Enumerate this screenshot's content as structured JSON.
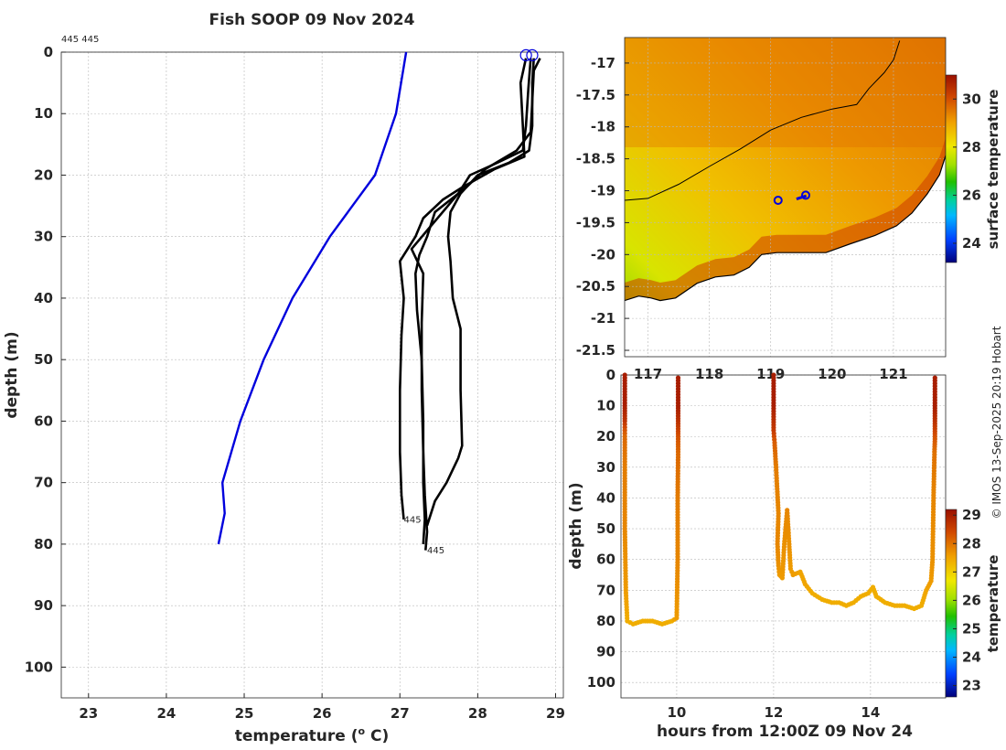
{
  "page": {
    "title": "Fish SOOP 09 Nov 2024",
    "copyright": "© IMOS 13-Sep-2025 20:19 Hobart"
  },
  "chart_data": [
    {
      "name": "profile",
      "type": "line",
      "title": "Fish SOOP 09 Nov 2024",
      "header_label": "445 445",
      "xlabel": "temperature (° C)",
      "xlabel_text": "temperature (",
      "xlabel_sup": "o",
      "xlabel_unit": " C)",
      "ylabel": "depth (m)",
      "xlim": [
        22.65,
        29.1
      ],
      "ylim": [
        105,
        0
      ],
      "xticks": [
        23,
        24,
        25,
        26,
        27,
        28,
        29
      ],
      "yticks": [
        0,
        10,
        20,
        30,
        40,
        50,
        60,
        70,
        80,
        90,
        100
      ],
      "grid": true,
      "series": [
        {
          "name": "climatology",
          "color": "#0000dd",
          "points": [
            [
              27.08,
              0
            ],
            [
              26.95,
              10
            ],
            [
              26.68,
              20
            ],
            [
              26.1,
              30
            ],
            [
              25.62,
              40
            ],
            [
              25.25,
              50
            ],
            [
              24.95,
              60
            ],
            [
              24.72,
              70
            ],
            [
              24.75,
              75
            ],
            [
              24.67,
              80
            ]
          ]
        },
        {
          "name": "profile-a",
          "color": "#000000",
          "points": [
            [
              28.62,
              1
            ],
            [
              28.55,
              5
            ],
            [
              28.58,
              12
            ],
            [
              28.6,
              17
            ],
            [
              28.22,
              19
            ],
            [
              27.8,
              22
            ],
            [
              27.55,
              24
            ],
            [
              27.3,
              27
            ],
            [
              27.2,
              30
            ],
            [
              27.0,
              34
            ],
            [
              27.05,
              40
            ],
            [
              27.02,
              46
            ],
            [
              27.0,
              55
            ],
            [
              27.0,
              65
            ],
            [
              27.02,
              72
            ],
            [
              27.05,
              76
            ]
          ]
        },
        {
          "name": "profile-b",
          "color": "#000000",
          "points": [
            [
              28.68,
              1
            ],
            [
              28.65,
              6
            ],
            [
              28.62,
              12
            ],
            [
              28.58,
              16
            ],
            [
              28.25,
              18
            ],
            [
              27.9,
              20
            ],
            [
              27.75,
              23
            ],
            [
              27.55,
              26
            ],
            [
              27.35,
              29
            ],
            [
              27.15,
              32
            ],
            [
              27.3,
              36
            ],
            [
              27.28,
              44
            ],
            [
              27.28,
              55
            ],
            [
              27.3,
              65
            ],
            [
              27.32,
              72
            ],
            [
              27.35,
              78
            ],
            [
              27.33,
              81
            ]
          ]
        },
        {
          "name": "profile-c",
          "color": "#000000",
          "points": [
            [
              28.72,
              1
            ],
            [
              28.7,
              5
            ],
            [
              28.7,
              12
            ],
            [
              28.66,
              16
            ],
            [
              28.4,
              18
            ],
            [
              28.0,
              20
            ],
            [
              27.78,
              23
            ],
            [
              27.65,
              26
            ],
            [
              27.62,
              30
            ],
            [
              27.65,
              34
            ],
            [
              27.68,
              40
            ],
            [
              27.78,
              45
            ],
            [
              27.78,
              55
            ],
            [
              27.8,
              64
            ],
            [
              27.75,
              66
            ],
            [
              27.6,
              70
            ],
            [
              27.45,
              73
            ],
            [
              27.35,
              77
            ]
          ]
        },
        {
          "name": "profile-d",
          "color": "#000000",
          "points": [
            [
              28.8,
              1
            ],
            [
              28.72,
              3
            ],
            [
              28.7,
              8
            ],
            [
              28.68,
              13
            ],
            [
              28.5,
              16
            ],
            [
              28.1,
              19
            ],
            [
              27.85,
              22
            ],
            [
              27.65,
              24
            ],
            [
              27.45,
              26
            ],
            [
              27.35,
              30
            ],
            [
              27.25,
              33
            ],
            [
              27.2,
              36
            ],
            [
              27.22,
              42
            ],
            [
              27.28,
              50
            ],
            [
              27.3,
              60
            ],
            [
              27.3,
              70
            ],
            [
              27.32,
              76
            ],
            [
              27.3,
              80
            ]
          ]
        }
      ],
      "markers": [
        [
          28.62,
          0.5
        ],
        [
          28.7,
          0.5
        ]
      ],
      "labels": [
        {
          "text": "445",
          "x": 27.05,
          "y": 76.5
        },
        {
          "text": "445",
          "x": 27.35,
          "y": 81.5
        }
      ]
    },
    {
      "name": "map",
      "type": "heatmap",
      "xlim": [
        116.62,
        121.85
      ],
      "ylim": [
        -21.6,
        -16.6
      ],
      "xticks": [
        117,
        118,
        119,
        120,
        121
      ],
      "yticks": [
        -17,
        -17.5,
        -18,
        -18.5,
        -19,
        -19.5,
        -20,
        -20.5,
        -21,
        -21.5
      ],
      "ytick_labels": [
        "-17",
        "-17.5",
        "-18",
        "-18.5",
        "-19",
        "-19.5",
        "-20",
        "-20.5",
        "-21",
        "-21.5"
      ],
      "grid": true,
      "colorbar": {
        "label": "surface temperature",
        "range": [
          23.2,
          31
        ],
        "ticks": [
          24,
          26,
          28,
          30
        ]
      },
      "coast": [
        [
          116.62,
          -20.72
        ],
        [
          116.85,
          -20.65
        ],
        [
          117.05,
          -20.68
        ],
        [
          117.2,
          -20.72
        ],
        [
          117.45,
          -20.68
        ],
        [
          117.8,
          -20.45
        ],
        [
          118.1,
          -20.35
        ],
        [
          118.4,
          -20.32
        ],
        [
          118.65,
          -20.2
        ],
        [
          118.85,
          -20.0
        ],
        [
          119.1,
          -19.97
        ],
        [
          119.5,
          -19.97
        ],
        [
          119.9,
          -19.97
        ],
        [
          120.3,
          -19.83
        ],
        [
          120.7,
          -19.7
        ],
        [
          121.05,
          -19.55
        ],
        [
          121.3,
          -19.35
        ],
        [
          121.55,
          -19.05
        ],
        [
          121.75,
          -18.75
        ],
        [
          121.85,
          -18.45
        ]
      ],
      "isobath": [
        [
          116.62,
          -19.15
        ],
        [
          117.0,
          -19.12
        ],
        [
          117.5,
          -18.9
        ],
        [
          118.0,
          -18.62
        ],
        [
          118.5,
          -18.35
        ],
        [
          119.0,
          -18.05
        ],
        [
          119.5,
          -17.85
        ],
        [
          120.0,
          -17.72
        ],
        [
          120.4,
          -17.65
        ],
        [
          120.6,
          -17.4
        ],
        [
          120.85,
          -17.15
        ],
        [
          121.0,
          -16.95
        ],
        [
          121.1,
          -16.65
        ]
      ],
      "track": [
        [
          119.42,
          -19.13
        ],
        [
          119.58,
          -19.08
        ]
      ],
      "stations": [
        [
          119.12,
          -19.15
        ],
        [
          119.57,
          -19.07
        ]
      ]
    },
    {
      "name": "section",
      "type": "scatter",
      "xlabel": "hours from 12:00Z 09 Nov 24",
      "ylabel": "depth (m)",
      "xlim": [
        8.85,
        15.55
      ],
      "ylim": [
        105,
        0
      ],
      "xticks": [
        10,
        12,
        14
      ],
      "yticks": [
        0,
        10,
        20,
        30,
        40,
        50,
        60,
        70,
        80,
        90,
        100
      ],
      "grid": true,
      "colorbar": {
        "label": "temperature",
        "range": [
          22.6,
          29.2
        ],
        "ticks": [
          23,
          24,
          25,
          26,
          27,
          28,
          29
        ]
      },
      "casts": [
        [
          [
            8.93,
            0,
            29.0
          ],
          [
            8.93,
            10,
            29.0
          ],
          [
            8.93,
            15,
            28.7
          ],
          [
            8.93,
            18,
            28.3
          ],
          [
            8.93,
            20,
            28.1
          ],
          [
            8.93,
            30,
            27.9
          ],
          [
            8.93,
            50,
            27.8
          ],
          [
            8.95,
            70,
            27.6
          ],
          [
            8.98,
            80,
            27.4
          ],
          [
            9.1,
            81,
            27.4
          ],
          [
            9.3,
            80,
            27.4
          ],
          [
            9.5,
            80,
            27.4
          ],
          [
            9.7,
            81,
            27.4
          ],
          [
            9.9,
            80,
            27.4
          ],
          [
            10.0,
            79,
            27.6
          ],
          [
            10.02,
            60,
            27.8
          ],
          [
            10.02,
            40,
            27.9
          ],
          [
            10.03,
            25,
            28.1
          ],
          [
            10.03,
            20,
            28.3
          ],
          [
            10.03,
            15,
            28.7
          ],
          [
            10.03,
            10,
            29.0
          ],
          [
            10.03,
            0,
            29.0
          ]
        ],
        [
          [
            12.0,
            0,
            29.0
          ],
          [
            12.0,
            10,
            29.0
          ],
          [
            12.0,
            18,
            28.6
          ],
          [
            12.02,
            22,
            28.2
          ],
          [
            12.05,
            30,
            27.9
          ],
          [
            12.1,
            45,
            27.8
          ],
          [
            12.08,
            55,
            27.8
          ],
          [
            12.1,
            62,
            27.7
          ],
          [
            12.12,
            65,
            27.6
          ],
          [
            12.18,
            66,
            27.6
          ],
          [
            12.22,
            55,
            27.7
          ],
          [
            12.28,
            44,
            27.8
          ],
          [
            12.32,
            55,
            27.7
          ],
          [
            12.35,
            63,
            27.6
          ],
          [
            12.4,
            65,
            27.6
          ],
          [
            12.55,
            64,
            27.5
          ],
          [
            12.65,
            68,
            27.5
          ],
          [
            12.8,
            71,
            27.4
          ],
          [
            13.0,
            73,
            27.4
          ],
          [
            13.2,
            74,
            27.4
          ],
          [
            13.35,
            74,
            27.4
          ],
          [
            13.5,
            75,
            27.4
          ],
          [
            13.65,
            74,
            27.4
          ],
          [
            13.8,
            72,
            27.4
          ],
          [
            13.95,
            71,
            27.4
          ],
          [
            14.05,
            69,
            27.4
          ],
          [
            14.12,
            72,
            27.4
          ],
          [
            14.3,
            74,
            27.4
          ],
          [
            14.5,
            75,
            27.4
          ],
          [
            14.7,
            75,
            27.4
          ],
          [
            14.9,
            76,
            27.4
          ],
          [
            15.05,
            75,
            27.4
          ],
          [
            15.15,
            70,
            27.5
          ],
          [
            15.25,
            67,
            27.6
          ],
          [
            15.28,
            60,
            27.7
          ],
          [
            15.3,
            40,
            27.8
          ],
          [
            15.32,
            25,
            28.0
          ],
          [
            15.33,
            20,
            28.3
          ],
          [
            15.33,
            15,
            28.7
          ],
          [
            15.33,
            10,
            29.0
          ],
          [
            15.33,
            0,
            29.0
          ]
        ]
      ]
    }
  ]
}
